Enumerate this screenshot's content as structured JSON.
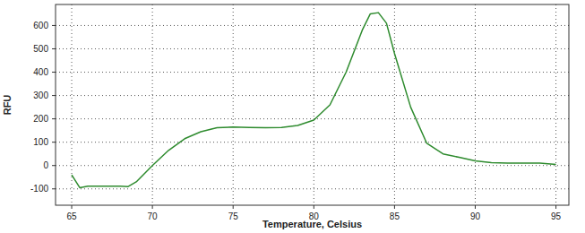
{
  "chart_data": {
    "type": "line",
    "x_label": "Temperature, Celsius",
    "y_label": "RFU",
    "x": [
      65,
      65.5,
      66,
      67,
      68,
      68.5,
      69,
      70,
      71,
      72,
      73,
      74,
      75,
      76,
      77,
      78,
      79,
      80,
      81,
      82,
      83,
      83.5,
      84,
      84.5,
      85,
      86,
      87,
      88,
      89,
      90,
      91,
      92,
      93,
      94,
      95
    ],
    "values": [
      -40,
      -95,
      -88,
      -88,
      -88,
      -90,
      -70,
      0,
      65,
      115,
      145,
      162,
      165,
      163,
      162,
      163,
      172,
      195,
      260,
      400,
      580,
      650,
      655,
      610,
      480,
      250,
      95,
      50,
      35,
      20,
      12,
      10,
      10,
      10,
      5
    ],
    "color": "#2e8b2e",
    "xlim": [
      64,
      95.8
    ],
    "xticks": [
      65,
      70,
      75,
      80,
      85,
      90,
      95
    ],
    "ylim": [
      -170,
      690
    ],
    "yticks": [
      -100,
      0,
      100,
      200,
      300,
      400,
      500,
      600
    ],
    "grid": true
  }
}
